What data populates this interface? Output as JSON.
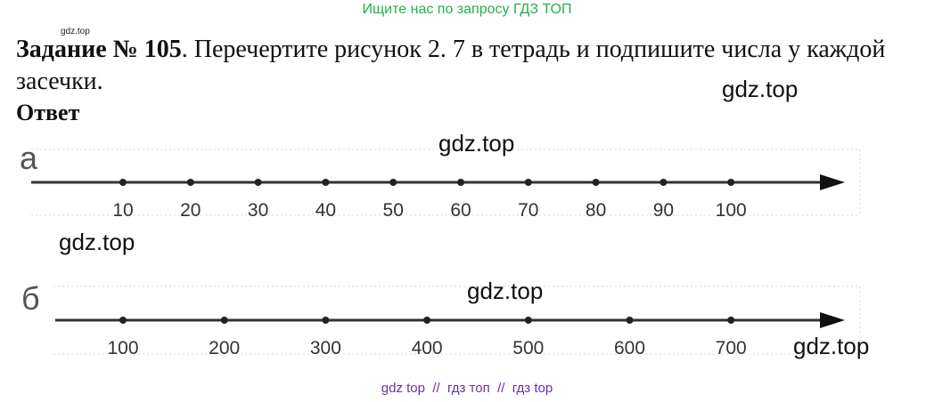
{
  "banner": "Ищите нас по запросу ГДЗ ТОП",
  "small_watermark": "gdz.top",
  "task": {
    "label": "Задание № 105",
    "text": ". Перечертите рисунок 2. 7 в тетрадь и подпишите числа у каждой засечки."
  },
  "answer_heading": "Ответ",
  "watermarks": [
    "gdz.top",
    "gdz.top",
    "gdz.top",
    "gdz.top",
    "gdz.top"
  ],
  "number_lines": [
    {
      "label": "а",
      "ticks": [
        10,
        20,
        30,
        40,
        50,
        60,
        70,
        80,
        90,
        100
      ]
    },
    {
      "label": "б",
      "ticks": [
        100,
        200,
        300,
        400,
        500,
        600,
        700
      ]
    }
  ],
  "footer": "gdz top  //  гдз топ  //  гдз top"
}
